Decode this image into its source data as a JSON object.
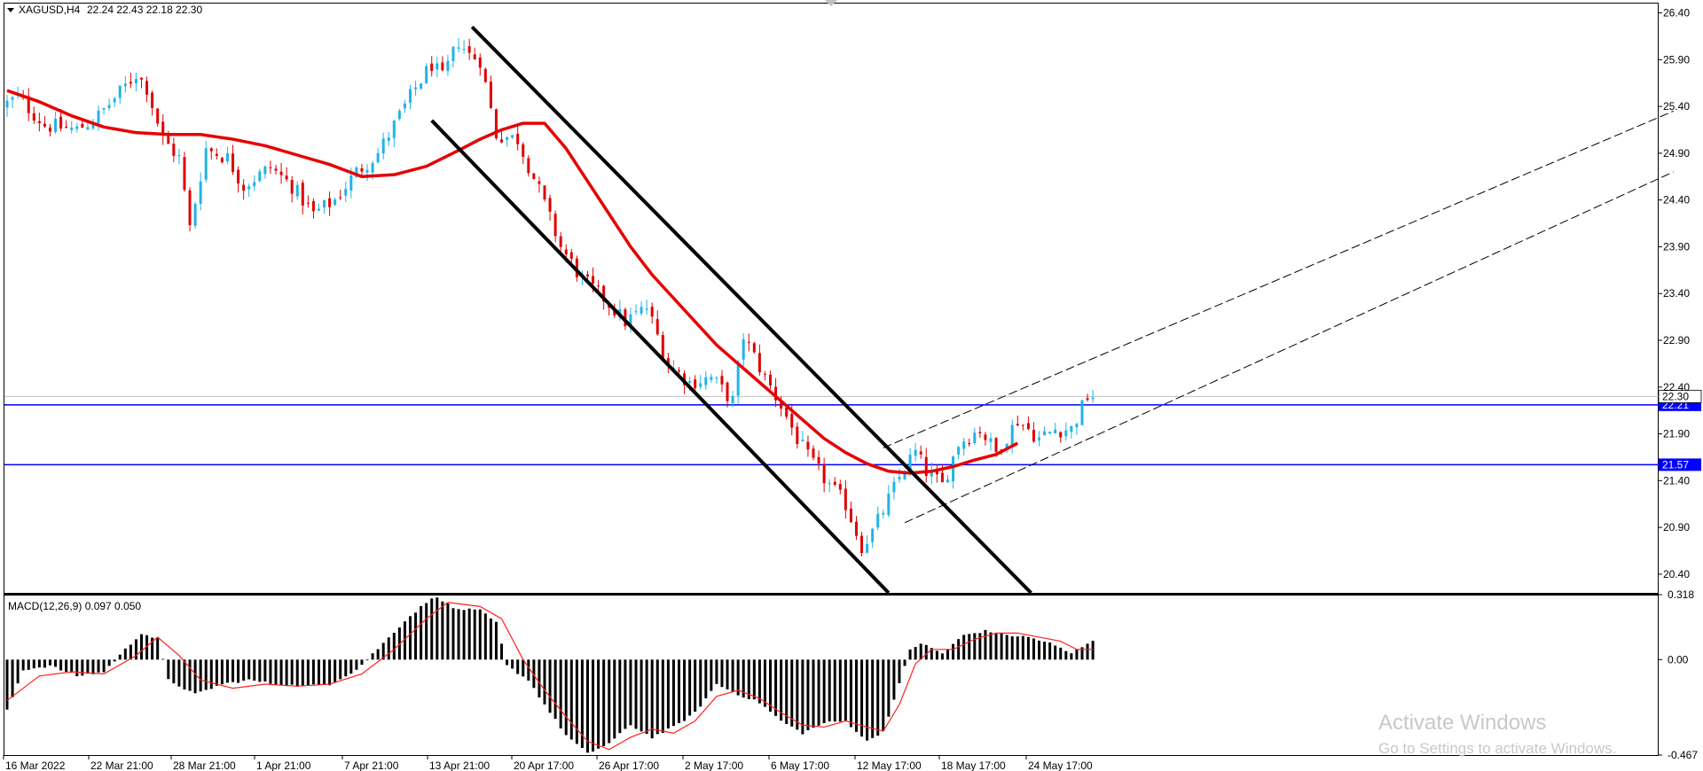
{
  "chart_data": [
    {
      "type": "candlestick",
      "symbol_label": "XAGUSD,H4",
      "ohlc_label": "22.24 22.43 22.18 22.30",
      "ylim": [
        20.2,
        26.5
      ],
      "y_ticks": [
        "26.40",
        "25.90",
        "25.40",
        "24.90",
        "24.40",
        "23.90",
        "23.40",
        "22.90",
        "22.40",
        "21.90",
        "21.40",
        "20.90",
        "20.40"
      ],
      "x_ticks": [
        "16 Mar 2022",
        "22 Mar 21:00",
        "28 Mar 21:00",
        "1 Apr 21:00",
        "7 Apr 21:00",
        "13 Apr 21:00",
        "20 Apr 17:00",
        "26 Apr 17:00",
        "2 May 17:00",
        "6 May 17:00",
        "12 May 17:00",
        "18 May 17:00",
        "24 May 17:00"
      ],
      "bar_count": 203,
      "price_path": [
        [
          0,
          25.4
        ],
        [
          3,
          25.5
        ],
        [
          8,
          25.2
        ],
        [
          14,
          25.15
        ],
        [
          18,
          25.3
        ],
        [
          22,
          25.55
        ],
        [
          25,
          25.75
        ],
        [
          27,
          25.6
        ],
        [
          30,
          25.05
        ],
        [
          33,
          24.85
        ],
        [
          35,
          24.1
        ],
        [
          38,
          24.95
        ],
        [
          42,
          24.85
        ],
        [
          45,
          24.55
        ],
        [
          50,
          24.75
        ],
        [
          54,
          24.55
        ],
        [
          58,
          24.25
        ],
        [
          62,
          24.4
        ],
        [
          66,
          24.7
        ],
        [
          70,
          24.9
        ],
        [
          74,
          25.3
        ],
        [
          77,
          25.6
        ],
        [
          80,
          25.85
        ],
        [
          82,
          25.7
        ],
        [
          85,
          26.1
        ],
        [
          87,
          25.95
        ],
        [
          89,
          25.9
        ],
        [
          92,
          25.1
        ],
        [
          96,
          25.05
        ],
        [
          100,
          24.5
        ],
        [
          104,
          23.9
        ],
        [
          108,
          23.55
        ],
        [
          112,
          23.35
        ],
        [
          116,
          23.1
        ],
        [
          120,
          23.25
        ],
        [
          124,
          22.65
        ],
        [
          128,
          22.45
        ],
        [
          132,
          22.5
        ],
        [
          136,
          22.25
        ],
        [
          138,
          22.95
        ],
        [
          142,
          22.5
        ],
        [
          145,
          22.2
        ],
        [
          148,
          21.85
        ],
        [
          150,
          21.65
        ],
        [
          154,
          21.35
        ],
        [
          157,
          21.15
        ],
        [
          160,
          20.7
        ],
        [
          162,
          20.85
        ],
        [
          165,
          21.2
        ],
        [
          168,
          21.55
        ],
        [
          170,
          21.7
        ],
        [
          172,
          21.5
        ],
        [
          175,
          21.35
        ],
        [
          178,
          21.8
        ],
        [
          182,
          21.95
        ],
        [
          185,
          21.7
        ],
        [
          189,
          22.05
        ],
        [
          193,
          21.85
        ],
        [
          196,
          21.95
        ],
        [
          199,
          21.95
        ],
        [
          202,
          22.3
        ]
      ],
      "ma_path": [
        [
          0,
          25.57
        ],
        [
          6,
          25.45
        ],
        [
          12,
          25.3
        ],
        [
          18,
          25.18
        ],
        [
          24,
          25.12
        ],
        [
          30,
          25.1
        ],
        [
          36,
          25.1
        ],
        [
          42,
          25.05
        ],
        [
          48,
          24.98
        ],
        [
          54,
          24.88
        ],
        [
          60,
          24.78
        ],
        [
          66,
          24.65
        ],
        [
          72,
          24.67
        ],
        [
          78,
          24.76
        ],
        [
          84,
          24.93
        ],
        [
          88,
          25.05
        ],
        [
          92,
          25.15
        ],
        [
          96,
          25.22
        ],
        [
          100,
          25.22
        ],
        [
          104,
          24.95
        ],
        [
          108,
          24.6
        ],
        [
          112,
          24.25
        ],
        [
          116,
          23.9
        ],
        [
          120,
          23.6
        ],
        [
          124,
          23.35
        ],
        [
          128,
          23.1
        ],
        [
          132,
          22.85
        ],
        [
          136,
          22.65
        ],
        [
          140,
          22.45
        ],
        [
          144,
          22.25
        ],
        [
          148,
          22.05
        ],
        [
          152,
          21.85
        ],
        [
          156,
          21.7
        ],
        [
          160,
          21.58
        ],
        [
          164,
          21.5
        ],
        [
          168,
          21.48
        ],
        [
          172,
          21.5
        ],
        [
          176,
          21.55
        ],
        [
          180,
          21.62
        ],
        [
          184,
          21.68
        ],
        [
          188,
          21.8
        ]
      ],
      "trendlines": [
        {
          "name": "upper-channel-line",
          "style": "solid",
          "points": [
            [
              86.5,
              26.25
            ],
            [
              190.5,
              20.2
            ]
          ]
        },
        {
          "name": "lower-channel-line",
          "style": "solid",
          "points": [
            [
              79,
              25.25
            ],
            [
              164,
              20.2
            ]
          ]
        },
        {
          "name": "rising-dashed-upper",
          "style": "dashed",
          "points": [
            [
              163,
              21.75
            ],
            [
              310,
              25.35
            ]
          ]
        },
        {
          "name": "rising-dashed-lower",
          "style": "dashed",
          "points": [
            [
              167,
              20.95
            ],
            [
              310,
              24.7
            ]
          ]
        }
      ],
      "hlines": [
        {
          "value": 22.21,
          "label": "22.21",
          "color": "#0000ff"
        },
        {
          "value": 21.57,
          "label": "21.57",
          "color": "#0000ff"
        }
      ],
      "current_price": {
        "value": 22.3,
        "label": "22.30"
      },
      "colors": {
        "bull": "#1fb4e6",
        "bear": "#e00000",
        "ma": "#e60000",
        "hline": "#0000ff",
        "trend": "#000000"
      }
    },
    {
      "type": "bar",
      "label": "MACD(12,26,9) 0.097 0.050",
      "ylim": [
        -0.467,
        0.318
      ],
      "y_ticks": [
        "0.318",
        "0.00",
        "-0.467"
      ],
      "macd_path": [
        [
          0,
          -0.25
        ],
        [
          3,
          -0.05
        ],
        [
          8,
          -0.03
        ],
        [
          13,
          -0.08
        ],
        [
          18,
          -0.06
        ],
        [
          22,
          0.05
        ],
        [
          25,
          0.13
        ],
        [
          28,
          0.1
        ],
        [
          30,
          -0.1
        ],
        [
          35,
          -0.17
        ],
        [
          40,
          -0.12
        ],
        [
          45,
          -0.1
        ],
        [
          50,
          -0.12
        ],
        [
          55,
          -0.13
        ],
        [
          60,
          -0.12
        ],
        [
          65,
          -0.05
        ],
        [
          70,
          0.08
        ],
        [
          74,
          0.19
        ],
        [
          78,
          0.28
        ],
        [
          80,
          0.31
        ],
        [
          83,
          0.25
        ],
        [
          88,
          0.24
        ],
        [
          91,
          0.18
        ],
        [
          93,
          -0.03
        ],
        [
          97,
          -0.1
        ],
        [
          100,
          -0.22
        ],
        [
          104,
          -0.37
        ],
        [
          108,
          -0.46
        ],
        [
          112,
          -0.41
        ],
        [
          116,
          -0.32
        ],
        [
          120,
          -0.38
        ],
        [
          124,
          -0.33
        ],
        [
          128,
          -0.26
        ],
        [
          132,
          -0.12
        ],
        [
          136,
          -0.17
        ],
        [
          140,
          -0.21
        ],
        [
          144,
          -0.3
        ],
        [
          148,
          -0.36
        ],
        [
          152,
          -0.31
        ],
        [
          156,
          -0.3
        ],
        [
          160,
          -0.4
        ],
        [
          163,
          -0.35
        ],
        [
          166,
          -0.12
        ],
        [
          168,
          0.05
        ],
        [
          170,
          0.08
        ],
        [
          174,
          0.03
        ],
        [
          178,
          0.12
        ],
        [
          182,
          0.14
        ],
        [
          186,
          0.12
        ],
        [
          190,
          0.11
        ],
        [
          194,
          0.08
        ],
        [
          198,
          0.03
        ],
        [
          202,
          0.097
        ]
      ],
      "signal_path": [
        [
          0,
          -0.2
        ],
        [
          6,
          -0.08
        ],
        [
          12,
          -0.06
        ],
        [
          18,
          -0.07
        ],
        [
          24,
          0.02
        ],
        [
          28,
          0.11
        ],
        [
          32,
          0.02
        ],
        [
          36,
          -0.1
        ],
        [
          42,
          -0.14
        ],
        [
          48,
          -0.12
        ],
        [
          54,
          -0.13
        ],
        [
          60,
          -0.12
        ],
        [
          66,
          -0.07
        ],
        [
          72,
          0.05
        ],
        [
          78,
          0.2
        ],
        [
          82,
          0.28
        ],
        [
          88,
          0.26
        ],
        [
          92,
          0.2
        ],
        [
          96,
          0.0
        ],
        [
          100,
          -0.15
        ],
        [
          104,
          -0.28
        ],
        [
          108,
          -0.4
        ],
        [
          112,
          -0.44
        ],
        [
          116,
          -0.38
        ],
        [
          120,
          -0.34
        ],
        [
          124,
          -0.36
        ],
        [
          128,
          -0.3
        ],
        [
          132,
          -0.18
        ],
        [
          136,
          -0.15
        ],
        [
          140,
          -0.19
        ],
        [
          144,
          -0.26
        ],
        [
          148,
          -0.32
        ],
        [
          152,
          -0.33
        ],
        [
          156,
          -0.3
        ],
        [
          160,
          -0.33
        ],
        [
          163,
          -0.35
        ],
        [
          166,
          -0.22
        ],
        [
          169,
          -0.02
        ],
        [
          172,
          0.05
        ],
        [
          176,
          0.05
        ],
        [
          180,
          0.1
        ],
        [
          184,
          0.13
        ],
        [
          188,
          0.13
        ],
        [
          192,
          0.11
        ],
        [
          196,
          0.09
        ],
        [
          199,
          0.05
        ],
        [
          202,
          0.05
        ]
      ],
      "colors": {
        "hist": "#000000",
        "signal": "#ff2020"
      }
    }
  ],
  "watermark": {
    "line1": "Activate Windows",
    "line2": "Go to Settings to activate Windows."
  }
}
